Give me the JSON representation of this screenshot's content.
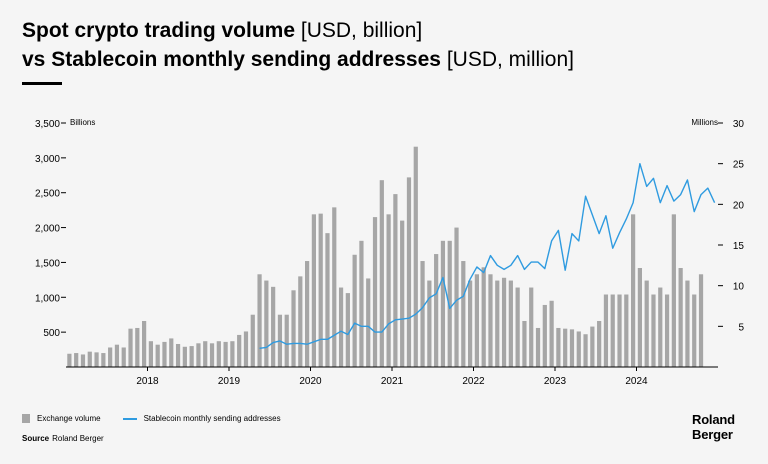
{
  "title": {
    "line1_bold": "Spot crypto trading volume",
    "line1_light": "[USD, billion]",
    "line2_bold": "vs Stablecoin monthly sending addresses",
    "line2_light": "[USD, million]"
  },
  "legend": {
    "bars_label": "Exchange volume",
    "line_label": "Stablecoin monthly sending addresses"
  },
  "source": {
    "label": "Source",
    "value": "Roland Berger"
  },
  "logo": {
    "line1": "Roland",
    "line2": "Berger"
  },
  "colors": {
    "bars": "#a6a6a6",
    "line": "#2f9be0",
    "text": "#000000",
    "axis": "#000000"
  },
  "chart_data": {
    "type": "bar",
    "x_range": [
      "2017-01",
      "2024-12"
    ],
    "x_ticks": [
      {
        "label": "2018",
        "month": "2018-01"
      },
      {
        "label": "2019",
        "month": "2019-01"
      },
      {
        "label": "2020",
        "month": "2020-01"
      },
      {
        "label": "2021",
        "month": "2021-01"
      },
      {
        "label": "2022",
        "month": "2022-01"
      },
      {
        "label": "2023",
        "month": "2023-01"
      },
      {
        "label": "2024",
        "month": "2024-01"
      }
    ],
    "y_left": {
      "unit_label": "Billions",
      "range": [
        0,
        3500
      ],
      "ticks": [
        500,
        1000,
        1500,
        2000,
        2500,
        3000,
        3500
      ],
      "tick_labels": [
        "500",
        "1,000",
        "1,500",
        "2,000",
        "2,500",
        "3,000",
        "3,500"
      ]
    },
    "y_right": {
      "unit_label": "Millions",
      "range": [
        0,
        30
      ],
      "ticks": [
        5,
        10,
        15,
        20,
        25,
        30
      ],
      "tick_labels": [
        "5",
        "10",
        "15",
        "20",
        "25",
        "30"
      ]
    },
    "series": [
      {
        "name": "Exchange volume",
        "axis": "left",
        "type": "bar",
        "start": "2017-01",
        "values": [
          190,
          200,
          180,
          220,
          210,
          200,
          280,
          320,
          280,
          550,
          560,
          660,
          370,
          320,
          360,
          410,
          330,
          290,
          300,
          340,
          370,
          340,
          370,
          360,
          370,
          460,
          510,
          750,
          1330,
          1240,
          1150,
          750,
          750,
          1100,
          1300,
          1520,
          2190,
          2200,
          1920,
          2290,
          1140,
          1060,
          1610,
          1810,
          1270,
          2150,
          2680,
          2190,
          2480,
          2100,
          2720,
          3160,
          1520,
          1240,
          1620,
          1810,
          1810,
          2000,
          1520,
          1240,
          1330,
          1430,
          1330,
          1240,
          1280,
          1240,
          1140,
          660,
          1140,
          560,
          890,
          950,
          560,
          550,
          540,
          510,
          470,
          580,
          660,
          1040,
          1040,
          1040,
          1040,
          2190,
          1420,
          1240,
          1040,
          1140,
          1040,
          2190,
          1420,
          1240,
          1040,
          1330
        ]
      },
      {
        "name": "Stablecoin monthly sending addresses",
        "axis": "right",
        "type": "line",
        "start": "2019-05",
        "values": [
          2.3,
          2.4,
          3.0,
          3.2,
          2.8,
          2.9,
          2.9,
          2.8,
          3.1,
          3.4,
          3.4,
          3.9,
          4.4,
          4.0,
          5.4,
          5.0,
          5.0,
          4.3,
          4.3,
          5.3,
          5.8,
          5.9,
          6.0,
          6.5,
          7.3,
          8.5,
          9.0,
          11.0,
          7.2,
          8.2,
          8.7,
          10.8,
          12.3,
          11.6,
          13.7,
          12.5,
          12.0,
          12.5,
          13.7,
          12.0,
          12.9,
          12.9,
          12.1,
          15.5,
          16.8,
          11.9,
          16.4,
          15.5,
          21.0,
          18.7,
          16.4,
          18.6,
          14.6,
          16.5,
          18.2,
          20.2,
          25.0,
          22.2,
          23.2,
          20.2,
          22.3,
          20.4,
          21.2,
          23.0,
          19.1,
          21.2,
          22.0,
          20.2
        ]
      }
    ],
    "grid": false,
    "legend_position": "bottom-left"
  }
}
